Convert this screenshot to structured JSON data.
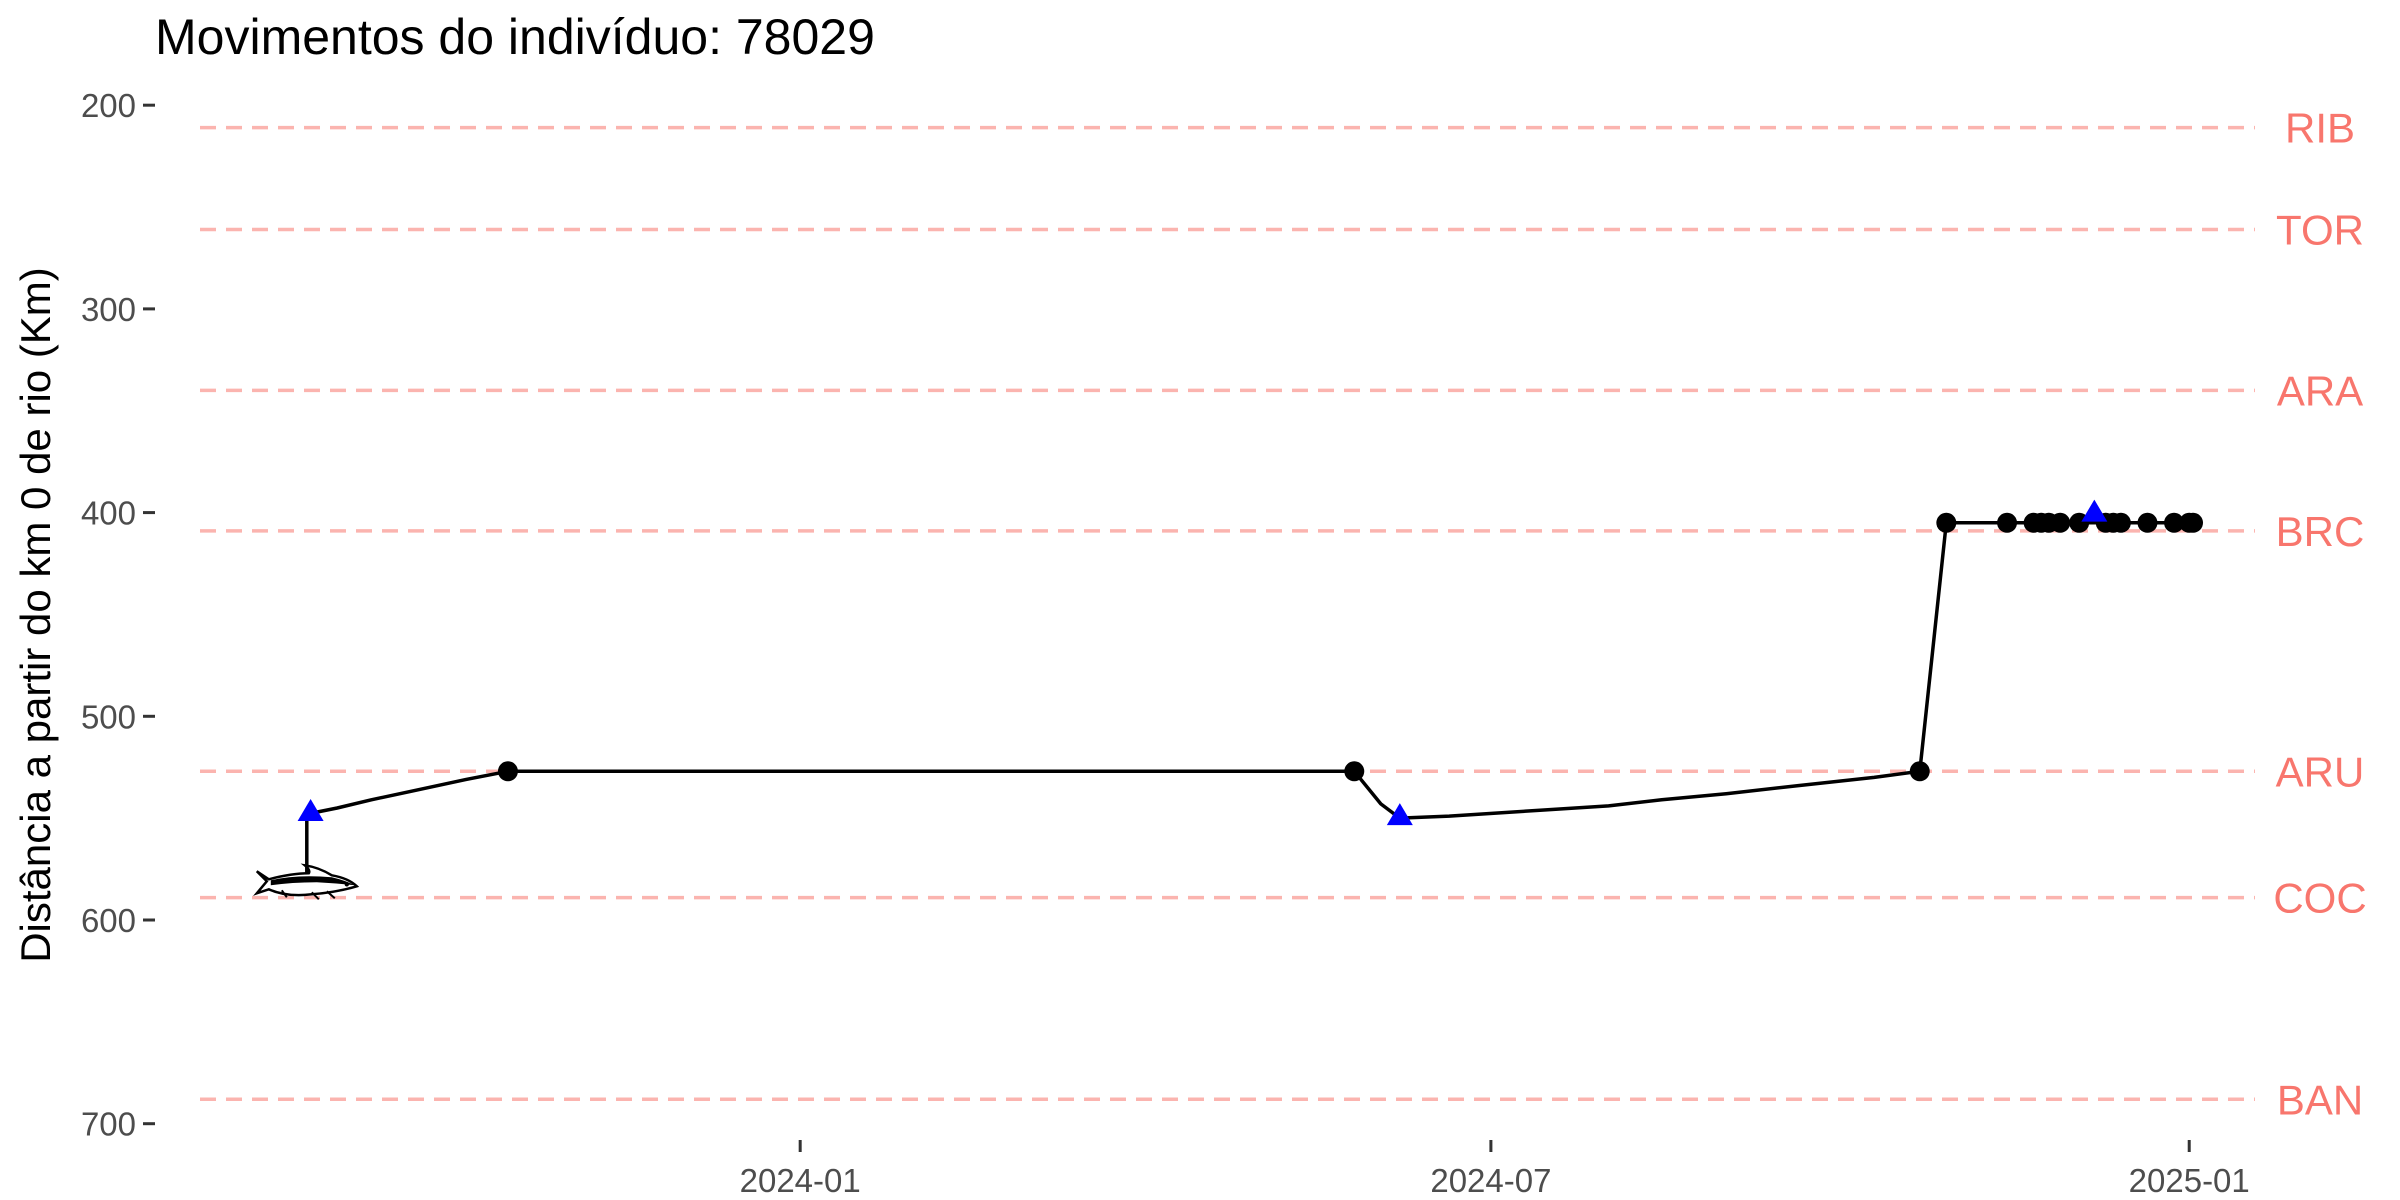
{
  "chart_data": {
    "type": "line",
    "title": "Movimentos do indivíduo: 78029",
    "xlabel": "",
    "ylabel": "Distância a partir do km 0 de rio (Km)",
    "x_axis": {
      "type": "date",
      "range": [
        "2023-07-15",
        "2025-02-15"
      ],
      "ticks": [
        {
          "value": "2024-01-01",
          "label": "2024-01"
        },
        {
          "value": "2024-07-01",
          "label": "2024-07"
        },
        {
          "value": "2025-01-01",
          "label": "2025-01"
        }
      ]
    },
    "y_axis": {
      "reversed": true,
      "range": [
        195,
        708
      ],
      "ticks": [
        200,
        300,
        400,
        500,
        600,
        700
      ]
    },
    "grid": false,
    "station_color": "#f8766d",
    "track_color": "#000000",
    "detection_color": "#000000",
    "tagging_color": "#0000ff",
    "stations": [
      {
        "label": "RIB",
        "km": 211
      },
      {
        "label": "TOR",
        "km": 261
      },
      {
        "label": "ARA",
        "km": 340
      },
      {
        "label": "BRC",
        "km": 409
      },
      {
        "label": "ARU",
        "km": 527
      },
      {
        "label": "COC",
        "km": 589
      },
      {
        "label": "BAN",
        "km": 688
      }
    ],
    "track": [
      {
        "date": "2023-08-24",
        "km": 579
      },
      {
        "date": "2023-08-24",
        "km": 548
      },
      {
        "date": "2023-09-01",
        "km": 545
      },
      {
        "date": "2023-09-10",
        "km": 541
      },
      {
        "date": "2023-09-20",
        "km": 537
      },
      {
        "date": "2023-10-05",
        "km": 531
      },
      {
        "date": "2023-10-16",
        "km": 527
      },
      {
        "date": "2024-05-26",
        "km": 527
      },
      {
        "date": "2024-06-02",
        "km": 543
      },
      {
        "date": "2024-06-07",
        "km": 550
      },
      {
        "date": "2024-06-20",
        "km": 549
      },
      {
        "date": "2024-07-15",
        "km": 546
      },
      {
        "date": "2024-08-01",
        "km": 544
      },
      {
        "date": "2024-08-15",
        "km": 541
      },
      {
        "date": "2024-09-01",
        "km": 538
      },
      {
        "date": "2024-09-20",
        "km": 534
      },
      {
        "date": "2024-10-10",
        "km": 530
      },
      {
        "date": "2024-10-22",
        "km": 527
      },
      {
        "date": "2024-10-29",
        "km": 405
      },
      {
        "date": "2025-01-02",
        "km": 405
      }
    ],
    "detections": [
      {
        "date": "2023-10-16",
        "km": 527
      },
      {
        "date": "2024-05-26",
        "km": 527
      },
      {
        "date": "2024-10-22",
        "km": 527
      },
      {
        "date": "2024-10-29",
        "km": 405
      },
      {
        "date": "2024-11-14",
        "km": 405
      },
      {
        "date": "2024-11-21",
        "km": 405
      },
      {
        "date": "2024-11-23",
        "km": 405
      },
      {
        "date": "2024-11-25",
        "km": 405
      },
      {
        "date": "2024-11-28",
        "km": 405
      },
      {
        "date": "2024-12-03",
        "km": 405
      },
      {
        "date": "2024-12-10",
        "km": 405
      },
      {
        "date": "2024-12-12",
        "km": 405
      },
      {
        "date": "2024-12-14",
        "km": 405
      },
      {
        "date": "2024-12-21",
        "km": 405
      },
      {
        "date": "2024-12-28",
        "km": 405
      },
      {
        "date": "2025-01-01",
        "km": 405
      },
      {
        "date": "2025-01-02",
        "km": 405
      }
    ],
    "tagging_markers": [
      {
        "date": "2023-08-25",
        "km": 547
      },
      {
        "date": "2024-06-07",
        "km": 549
      },
      {
        "date": "2024-12-07",
        "km": 400
      }
    ],
    "fish_icon": {
      "name": "fish-icon",
      "date": "2023-08-24",
      "km": 582
    }
  }
}
